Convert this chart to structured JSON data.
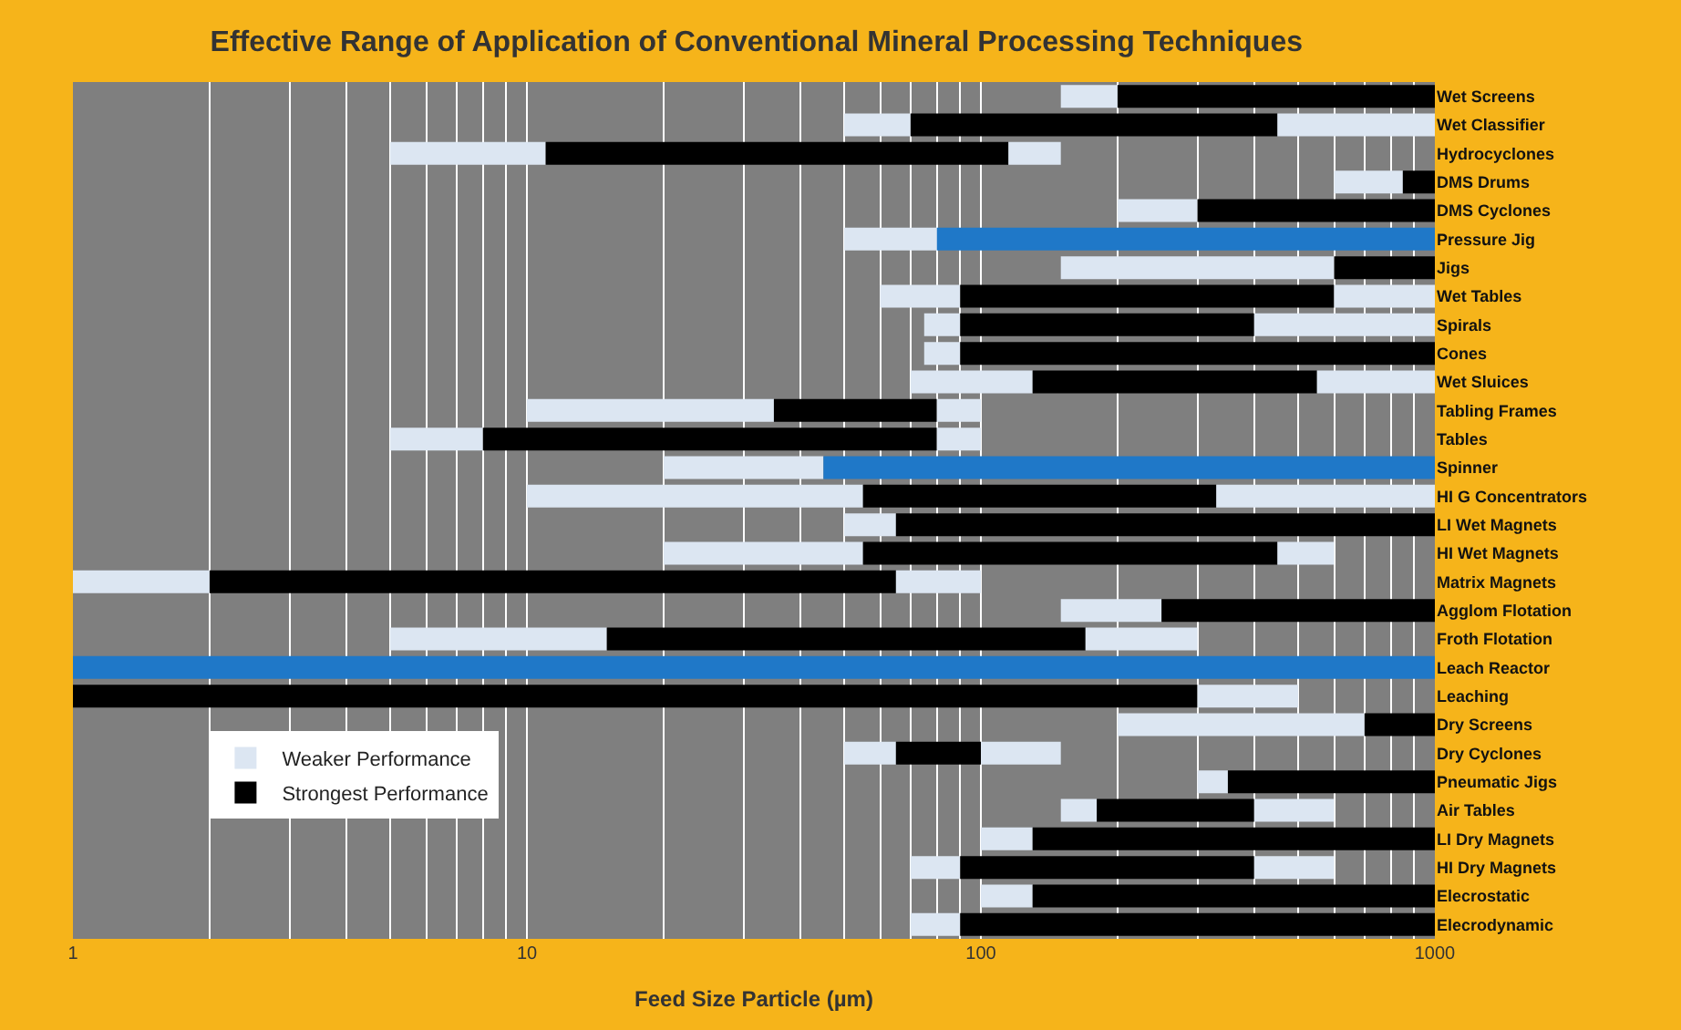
{
  "chart_data": {
    "type": "bar",
    "orientation": "horizontal",
    "title": "Effective Range of Application of Conventional Mineral Processing Techniques",
    "xlabel": "Feed Size Particle (µm)",
    "categories": [
      "Wet Screens",
      "Wet Classifier",
      "Hydrocyclones",
      "DMS Drums",
      "DMS Cyclones",
      "Pressure Jig",
      "Jigs",
      "Wet Tables",
      "Spirals",
      "Cones",
      "Wet Sluices",
      "Tabling Frames",
      "Tables",
      "Spinner",
      "HI G Concentrators",
      "LI Wet Magnets",
      "HI Wet Magnets",
      "Matrix Magnets",
      "Agglom Flotation",
      "Froth Flotation",
      "Leach Reactor",
      "Leaching",
      "Dry Screens",
      "Dry Cyclones",
      "Pneumatic Jigs",
      "Air Tables",
      "LI Dry Magnets",
      "HI Dry Magnets",
      "Elecrostatic",
      "Elecrodynamic"
    ],
    "series": [
      {
        "name": "Weaker Performance",
        "color": "#dce6f2",
        "base": [
          150,
          50,
          5,
          600,
          200,
          50,
          150,
          60,
          75,
          75,
          70,
          10,
          5,
          20,
          10,
          50,
          20,
          1,
          150,
          5,
          null,
          null,
          200,
          50,
          300,
          150,
          100,
          70,
          100,
          70
        ],
        "values": [
          50,
          20,
          6,
          250,
          100,
          30,
          450,
          30,
          15,
          15,
          60,
          25,
          3,
          25,
          45,
          15,
          35,
          1,
          100,
          10,
          null,
          null,
          500,
          15,
          50,
          30,
          30,
          20,
          30,
          20
        ]
      },
      {
        "name": "Strongest Performance",
        "color": "#000000",
        "colors": [
          "#000000",
          "#000000",
          "#000000",
          "#000000",
          "#000000",
          "#1f78c8",
          "#000000",
          "#000000",
          "#000000",
          "#000000",
          "#000000",
          "#000000",
          "#000000",
          "#1f78c8",
          "#000000",
          "#000000",
          "#000000",
          "#000000",
          "#000000",
          "#000000",
          "#1f78c8",
          "#000000",
          "#000000",
          "#000000",
          "#000000",
          "#000000",
          "#000000",
          "#000000",
          "#000000",
          "#000000"
        ],
        "base": [
          200,
          70,
          11,
          850,
          300,
          80,
          600,
          90,
          90,
          90,
          130,
          35,
          8,
          45,
          55,
          65,
          55,
          2,
          250,
          15,
          1,
          1,
          700,
          65,
          350,
          180,
          130,
          90,
          130,
          90
        ],
        "values": [
          800,
          380,
          104,
          150,
          700,
          920,
          400,
          510,
          310,
          910,
          420,
          45,
          72,
          955,
          275,
          935,
          395,
          63,
          750,
          155,
          999,
          299,
          300,
          35,
          650,
          220,
          870,
          310,
          870,
          910
        ]
      },
      {
        "color": "#dce6f2",
        "base": [
          null,
          450,
          115,
          null,
          null,
          null,
          null,
          600,
          400,
          null,
          550,
          80,
          80,
          null,
          330,
          null,
          450,
          65,
          null,
          170,
          null,
          300,
          null,
          100,
          null,
          400,
          null,
          400,
          null,
          null
        ],
        "values": [
          null,
          550,
          35,
          null,
          null,
          null,
          null,
          400,
          600,
          null,
          450,
          20,
          20,
          null,
          670,
          null,
          150,
          35,
          null,
          130,
          null,
          200,
          null,
          50,
          null,
          200,
          null,
          200,
          null,
          null
        ]
      }
    ],
    "log": "x",
    "xlim": [
      1,
      1000
    ],
    "xticks": [
      1,
      {
        "value": 2,
        "label": null
      },
      {
        "value": 3,
        "label": null
      },
      {
        "value": 4,
        "label": null
      },
      {
        "value": 5,
        "label": null
      },
      {
        "value": 6,
        "label": null
      },
      {
        "value": 7,
        "label": null
      },
      {
        "value": 8,
        "label": null
      },
      {
        "value": 9,
        "label": null
      },
      10,
      {
        "value": 20,
        "label": null
      },
      {
        "value": 30,
        "label": null
      },
      {
        "value": 40,
        "label": null
      },
      {
        "value": 50,
        "label": null
      },
      {
        "value": 60,
        "label": null
      },
      {
        "value": 70,
        "label": null
      },
      {
        "value": 80,
        "label": null
      },
      {
        "value": 90,
        "label": null
      },
      100,
      {
        "value": 200,
        "label": null
      },
      {
        "value": 300,
        "label": null
      },
      {
        "value": 400,
        "label": null
      },
      {
        "value": 500,
        "label": null
      },
      {
        "value": 600,
        "label": null
      },
      {
        "value": 700,
        "label": null
      },
      {
        "value": 800,
        "label": null
      },
      {
        "value": 900,
        "label": null
      },
      1000
    ],
    "grid": "x",
    "legend": "bottom left"
  }
}
